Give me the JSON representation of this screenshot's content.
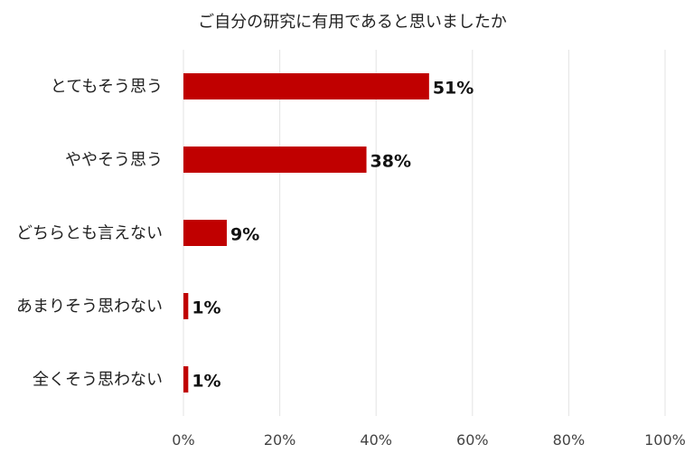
{
  "chart_data": {
    "type": "bar",
    "orientation": "horizontal",
    "title": "ご自分の研究に有用であると思いましたか",
    "categories": [
      "とてもそう思う",
      "ややそう思う",
      "どちらとも言えない",
      "あまりそう思わない",
      "全くそう思わない"
    ],
    "values": [
      51,
      38,
      9,
      1,
      1
    ],
    "value_labels": [
      "51%",
      "38%",
      "9%",
      "1%",
      "1%"
    ],
    "x_ticks": [
      "0%",
      "20%",
      "40%",
      "60%",
      "80%",
      "100%"
    ],
    "xlim": [
      0,
      100
    ],
    "xlabel": "",
    "ylabel": "",
    "grid": true,
    "legend": "none",
    "bar_color": "#c00000"
  }
}
